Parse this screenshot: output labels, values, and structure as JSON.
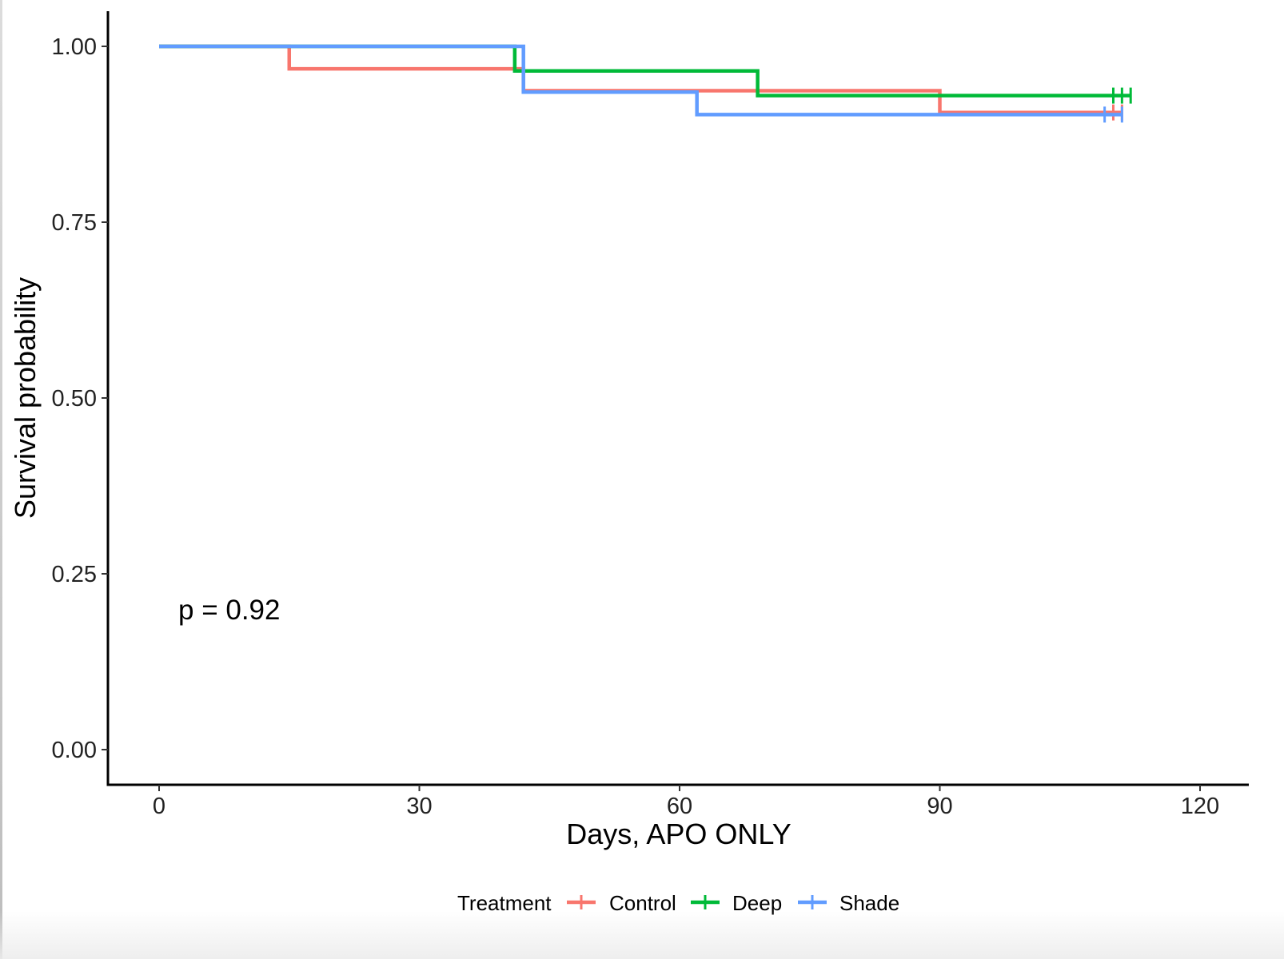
{
  "chart_data": {
    "type": "line",
    "subtype": "kaplan-meier step curve",
    "title": "",
    "xlabel": "Days, APO ONLY",
    "ylabel": "Survival probability",
    "xlim": [
      -5,
      125
    ],
    "ylim": [
      -0.05,
      1.05
    ],
    "x_ticks": [
      0,
      30,
      60,
      90,
      120
    ],
    "y_ticks": [
      0.0,
      0.25,
      0.5,
      0.75,
      1.0
    ],
    "x_tick_labels": [
      "0",
      "30",
      "60",
      "90",
      "120"
    ],
    "y_tick_labels": [
      "0.00",
      "0.25",
      "0.50",
      "0.75",
      "1.00"
    ],
    "grid": false,
    "annotation": "p = 0.92",
    "legend": {
      "title": "Treatment",
      "position": "bottom"
    },
    "series": [
      {
        "name": "Control",
        "color": "#F8766D",
        "steps": [
          [
            0,
            1.0
          ],
          [
            15,
            0.968
          ],
          [
            42,
            0.937
          ],
          [
            90,
            0.906
          ],
          [
            111,
            0.906
          ]
        ],
        "censor_x": [
          110,
          111
        ]
      },
      {
        "name": "Deep",
        "color": "#00BA38",
        "steps": [
          [
            0,
            1.0
          ],
          [
            41,
            0.965
          ],
          [
            69,
            0.93
          ],
          [
            112,
            0.93
          ]
        ],
        "censor_x": [
          110,
          111,
          112
        ]
      },
      {
        "name": "Shade",
        "color": "#619CFF",
        "steps": [
          [
            0,
            1.0
          ],
          [
            42,
            0.935
          ],
          [
            62,
            0.903
          ],
          [
            111,
            0.903
          ]
        ],
        "censor_x": [
          109,
          111
        ]
      }
    ]
  }
}
